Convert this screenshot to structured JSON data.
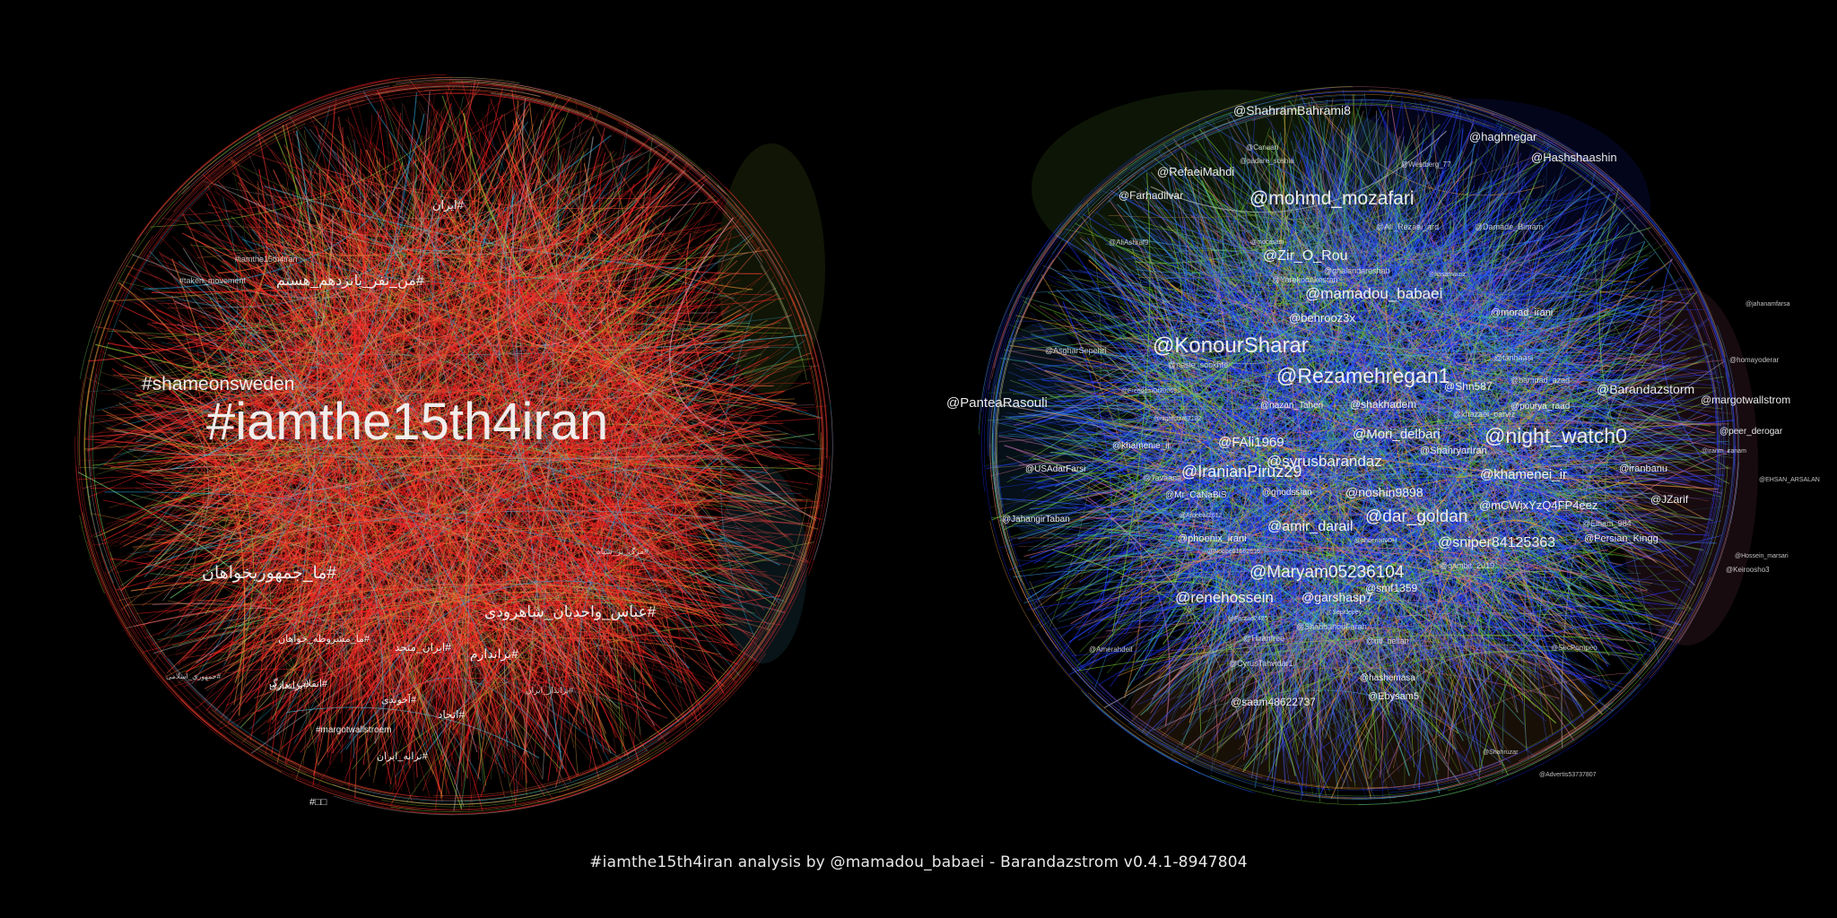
{
  "caption": "#iamthe15th4iran analysis by @mamadou_babaei - Barandazstrom v0.4.1-8947804",
  "left_graph": {
    "description_palette": [
      "#ff2020",
      "#e83030",
      "#ff5a3c",
      "#ff8a3c",
      "#d9a03a",
      "#9bd23a",
      "#4fc3e8",
      "#2aa0d8",
      "#b0b0b0",
      "#f0a0c0",
      "#6fd06f"
    ],
    "labels": [
      {
        "text": "#iamthe15th4iran",
        "rank": 1
      },
      {
        "text": "#shameonsweden",
        "rank": 2
      },
      {
        "text": "#ما_جمهوریخواهان",
        "rank": 2
      },
      {
        "text": "#عباس_واحدیان_شاهرودی",
        "rank": 3
      },
      {
        "text": "#من_نفر_پانزدهم_هستم",
        "rank": 3
      },
      {
        "text": "#ایران",
        "rank": 4
      },
      {
        "text": "#براندازم",
        "rank": 4
      },
      {
        "text": "#ایران_متحد",
        "rank": 4
      },
      {
        "text": "#انقلاب_بزرگ",
        "rank": 4
      },
      {
        "text": "#براندازی",
        "rank": 4
      },
      {
        "text": "#اتحاد",
        "rank": 4
      },
      {
        "text": "#ما_مشروطه_خواهان",
        "rank": 5
      },
      {
        "text": "#آخوندی",
        "rank": 5
      },
      {
        "text": "#ترانه_ایران",
        "rank": 5
      },
      {
        "text": "#iamthe15th4iran",
        "rank": 6
      },
      {
        "text": "#margotwallstroem",
        "rank": 6
      },
      {
        "text": "#□□",
        "rank": 6
      },
      {
        "text": "#taken_movement",
        "rank": 7
      },
      {
        "text": "#برانداز_ایران",
        "rank": 7
      },
      {
        "text": "#جمهوری_اسلامی",
        "rank": 7
      },
      {
        "text": "#مرگ_بر_سپاه",
        "rank": 7
      }
    ]
  },
  "right_graph": {
    "description_palette": [
      "#2a4dff",
      "#1a2fff",
      "#5ab830",
      "#7ddc3a",
      "#3aa0e8",
      "#d46ab0",
      "#e07090",
      "#f0a040",
      "#c0c0c0",
      "#40c0c0"
    ],
    "labels": [
      {
        "text": "@night_watch0",
        "rank": 1
      },
      {
        "text": "@KonourSharar",
        "rank": 1
      },
      {
        "text": "@Rezamehregan1",
        "rank": 1
      },
      {
        "text": "@mohmd_mozafari",
        "rank": 1
      },
      {
        "text": "@Maryam05236104",
        "rank": 2
      },
      {
        "text": "@dar_goldan",
        "rank": 2
      },
      {
        "text": "@IranianPiruz29",
        "rank": 2
      },
      {
        "text": "@renehossein",
        "rank": 2
      },
      {
        "text": "@syrusbarandaz",
        "rank": 2
      },
      {
        "text": "@sniper84125363",
        "rank": 2
      },
      {
        "text": "@mamadou_babaei",
        "rank": 3
      },
      {
        "text": "@Zir_O_Rou",
        "rank": 3
      },
      {
        "text": "@amir_darail",
        "rank": 3
      },
      {
        "text": "@Mori_delbari",
        "rank": 3
      },
      {
        "text": "@khamenei_ir",
        "rank": 3
      },
      {
        "text": "@FAli1969",
        "rank": 3
      },
      {
        "text": "@noshin9898",
        "rank": 3
      },
      {
        "text": "@Barandazstorm",
        "rank": 3
      },
      {
        "text": "@garshasp7",
        "rank": 3
      },
      {
        "text": "@ShahramBahrami8",
        "rank": 3
      },
      {
        "text": "@PanteaRasouli",
        "rank": 3
      },
      {
        "text": "@behrooz3x",
        "rank": 3
      },
      {
        "text": "@RefaeiMahdi",
        "rank": 4
      },
      {
        "text": "@haghnegar",
        "rank": 4
      },
      {
        "text": "@Hashshaashin",
        "rank": 4
      },
      {
        "text": "@Farhadilvar",
        "rank": 4
      },
      {
        "text": "@margotwallstrom",
        "rank": 4
      },
      {
        "text": "@mCWjxYzQ4FP4eez",
        "rank": 4
      },
      {
        "text": "@shakhadem",
        "rank": 4
      },
      {
        "text": "@Shn587",
        "rank": 4
      },
      {
        "text": "@JZarif",
        "rank": 4
      },
      {
        "text": "@saam48622737",
        "rank": 4
      },
      {
        "text": "@smf1359",
        "rank": 4
      },
      {
        "text": "@Ebysam5",
        "rank": 4
      },
      {
        "text": "@morad_irani",
        "rank": 4
      },
      {
        "text": "@iranbanu",
        "rank": 4
      },
      {
        "text": "@Persian_Kingg",
        "rank": 4
      },
      {
        "text": "@ShahryarIran",
        "rank": 4
      },
      {
        "text": "@phoenix_irani",
        "rank": 4
      },
      {
        "text": "@peer_derogar",
        "rank": 4
      },
      {
        "text": "@hashemasa",
        "rank": 4
      },
      {
        "text": "@nazan_Taheri",
        "rank": 5
      },
      {
        "text": "@pourya_raad",
        "rank": 5
      },
      {
        "text": "@khazaei_parviz",
        "rank": 5
      },
      {
        "text": "@bamdad_azad",
        "rank": 5
      },
      {
        "text": "@ghalandareshab",
        "rank": 5
      },
      {
        "text": "@Yarekodakestan",
        "rank": 5
      },
      {
        "text": "@Ali_Rezaei_ard",
        "rank": 5
      },
      {
        "text": "@Damade_Bimam",
        "rank": 5
      },
      {
        "text": "@USAdarFarsi",
        "rank": 5
      },
      {
        "text": "@JahangirTaban",
        "rank": 5
      },
      {
        "text": "@Mr_CaNaBiS",
        "rank": 5
      },
      {
        "text": "@ghodssian",
        "rank": 5
      },
      {
        "text": "@khamenie_ir",
        "rank": 5
      },
      {
        "text": "@Tavaana",
        "rank": 5
      },
      {
        "text": "@gambit_2019",
        "rank": 5
      },
      {
        "text": "@ShahbanouFarah",
        "rank": 5
      },
      {
        "text": "@Hiranfree",
        "rank": 5
      },
      {
        "text": "@CyrusTahvidar1",
        "rank": 5
      },
      {
        "text": "@ml_bellah",
        "rank": 5
      },
      {
        "text": "@Elham_984",
        "rank": 5
      },
      {
        "text": "@tanhaasi",
        "rank": 5
      },
      {
        "text": "@nasle_sookhte",
        "rank": 5
      },
      {
        "text": "@AsgharSepehri",
        "rank": 5
      },
      {
        "text": "@AliAshraf9",
        "rank": 5
      },
      {
        "text": "@Canaan",
        "rank": 6
      },
      {
        "text": "@padare_soshia",
        "rank": 6
      },
      {
        "text": "@Westberg_77",
        "rank": 6
      },
      {
        "text": "@FreedomOf200691",
        "rank": 6
      },
      {
        "text": "@nightstar62182",
        "rank": 6
      },
      {
        "text": "@hasanvaziz",
        "rank": 6
      },
      {
        "text": "@mocasam",
        "rank": 6
      },
      {
        "text": "@Aroobar2612",
        "rank": 6
      },
      {
        "text": "@Noobe61662516",
        "rank": 6
      },
      {
        "text": "@phoenixNOH",
        "rank": 6
      },
      {
        "text": "@Amerahdeil",
        "rank": 6
      },
      {
        "text": "@Farzad2425",
        "rank": 6
      },
      {
        "text": "@Sepidepey",
        "rank": 6
      },
      {
        "text": "@SecPompeo",
        "rank": 6
      },
      {
        "text": "@Shahruzar",
        "rank": 6
      },
      {
        "text": "@Advertis53737807",
        "rank": 6
      },
      {
        "text": "@homayoderar",
        "rank": 6
      },
      {
        "text": "@iranm_iranam",
        "rank": 6
      },
      {
        "text": "@EHSAN_ARSALAN",
        "rank": 6
      },
      {
        "text": "@Keiroosho3",
        "rank": 6
      },
      {
        "text": "@jahanamfarsa",
        "rank": 6
      },
      {
        "text": "@Hossein_marsari",
        "rank": 6
      }
    ]
  }
}
